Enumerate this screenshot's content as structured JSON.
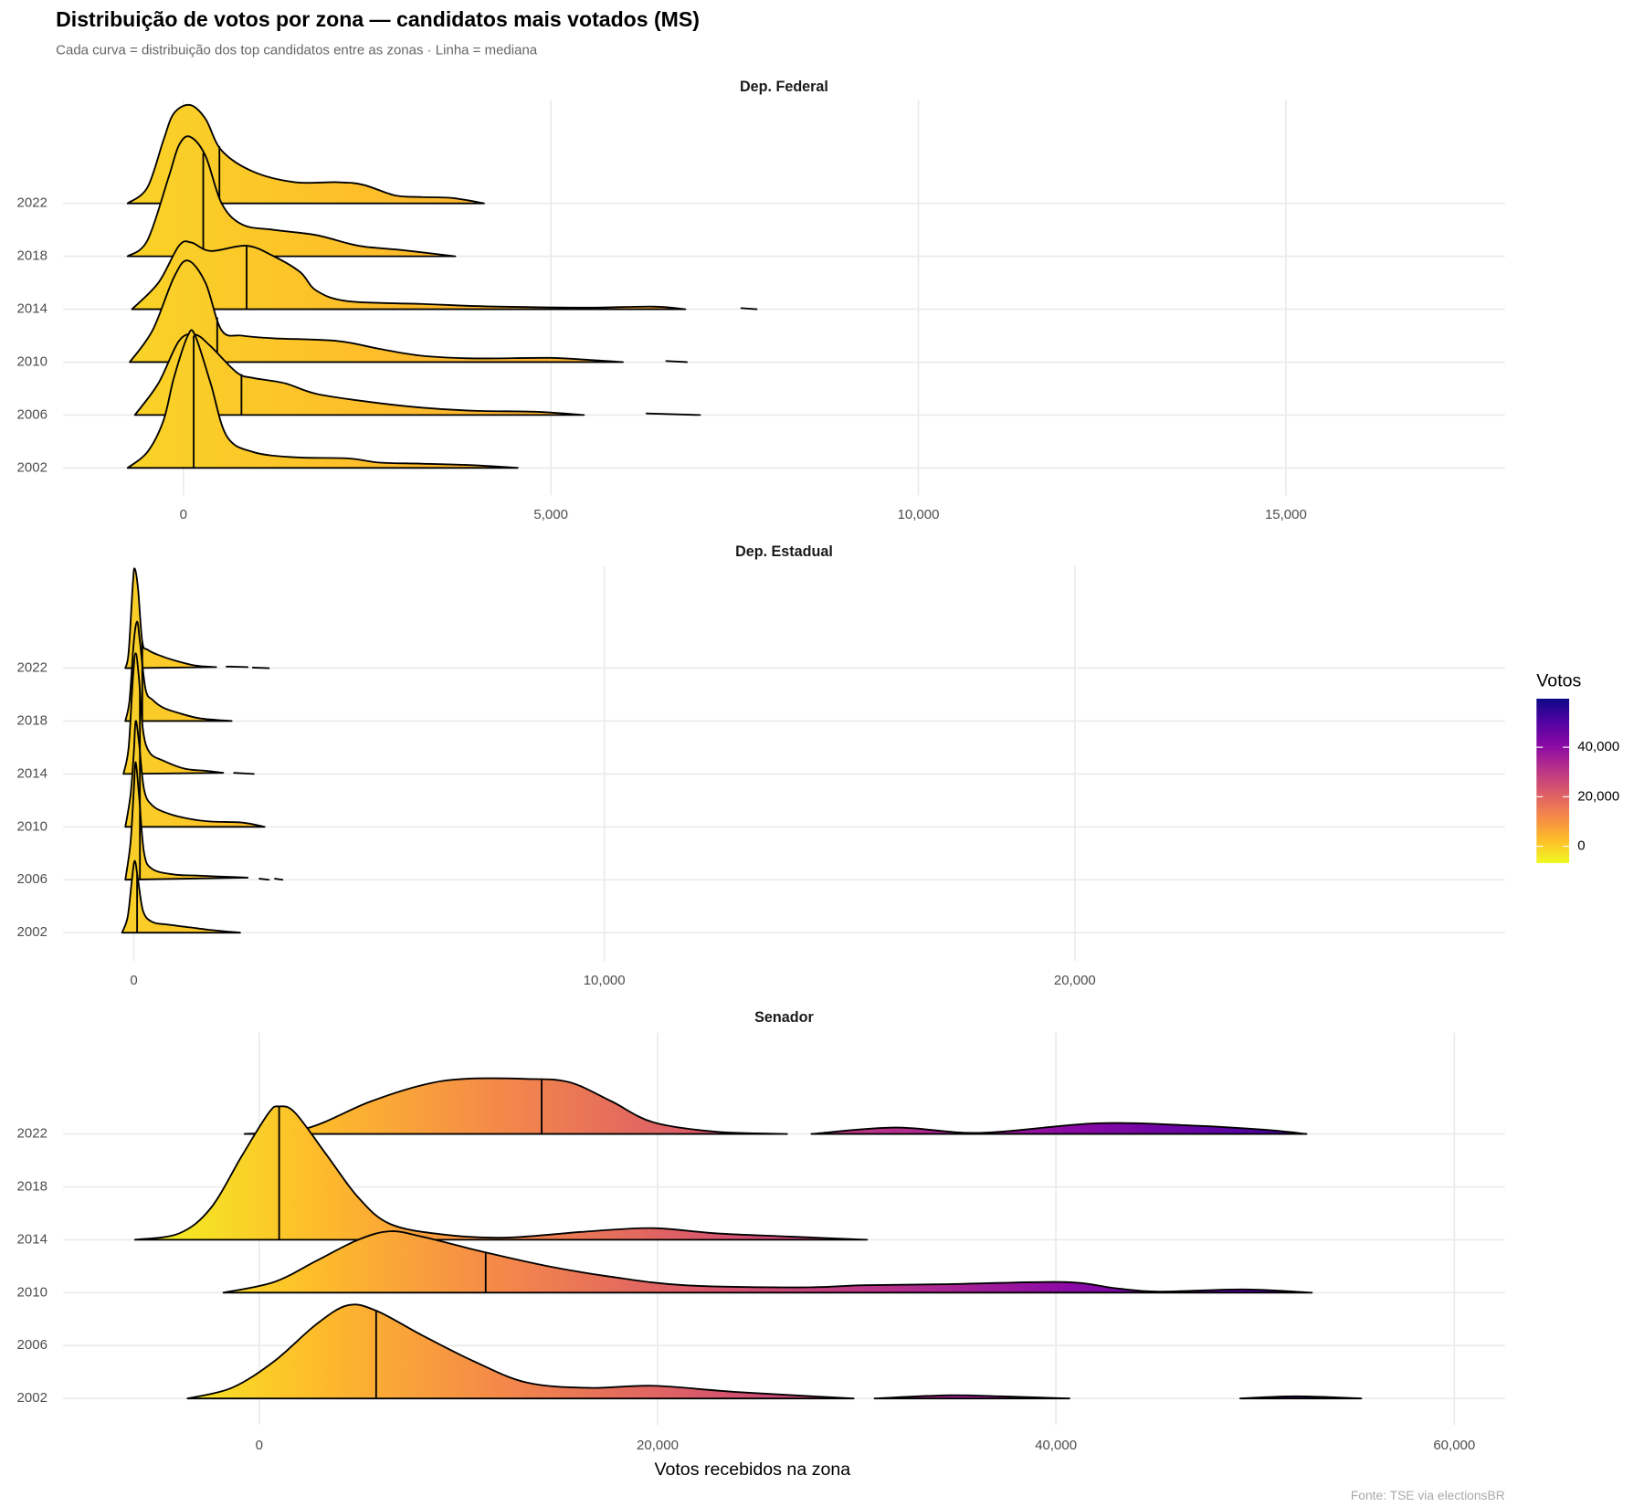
{
  "title": "Distribuição de votos por zona — candidatos mais votados (MS)",
  "subtitle": "Cada curva = distribuição dos top candidatos entre as zonas · Linha = mediana",
  "caption": "Fonte: TSE via electionsBR",
  "legend": {
    "title": "Votos",
    "ylim": [
      -6800,
      59600
    ],
    "ticks": [
      0,
      {
        "value": 20000,
        "label": "20,000"
      },
      {
        "value": 40000,
        "label": "40,000"
      }
    ],
    "colorscale": [
      "#f0f921",
      "#febd2a",
      "#f48849",
      "#db5c68",
      "#b83289",
      "#8b0aa5",
      "#5302a3",
      "#0d0887"
    ]
  },
  "chart_data": [
    {
      "type": "ridgeline",
      "title": "Dep. Federal",
      "grid": true,
      "line_color": "#000000",
      "categories": [
        "2022",
        "2018",
        "2014",
        "2010",
        "2006",
        "2002"
      ],
      "xlim": [
        -1635,
        17980
      ],
      "xticks": [
        0,
        {
          "value": 5000,
          "label": "5,000"
        },
        {
          "value": 10000,
          "label": "10,000"
        },
        {
          "value": 15000,
          "label": "15,000"
        }
      ],
      "series": [
        {
          "x": [
            -760,
            -490,
            -270,
            -130,
            90,
            300,
            520,
            950,
            1520,
            2100,
            2450,
            2880,
            3240,
            3670,
            4090
          ],
          "density": [
            0,
            0.3,
            1.2,
            1.7,
            1.86,
            1.6,
            1.0,
            0.6,
            0.4,
            0.4,
            0.35,
            0.15,
            0.12,
            0.1,
            0
          ],
          "median": 490
        },
        {
          "x": [
            -760,
            -490,
            -200,
            -60,
            90,
            300,
            520,
            800,
            1230,
            1810,
            2380,
            2960,
            3700
          ],
          "density": [
            0,
            0.3,
            1.5,
            2.1,
            2.26,
            1.9,
            1.0,
            0.6,
            0.5,
            0.4,
            0.2,
            0.12,
            0
          ],
          "median": 270
        },
        {
          "x": [
            -700,
            -340,
            -60,
            110,
            370,
            860,
            1230,
            1590,
            1810,
            2240,
            3240,
            3960,
            4680,
            5540,
            6400,
            6830,
            null,
            7590,
            7800
          ],
          "density": [
            0,
            0.5,
            1.2,
            1.26,
            1.1,
            1.2,
            1.0,
            0.7,
            0.35,
            0.15,
            0.1,
            0.06,
            0.04,
            0.03,
            0.05,
            0,
            null,
            0.02,
            0
          ],
          "median": 860
        },
        {
          "x": [
            -730,
            -420,
            -130,
            60,
            300,
            520,
            800,
            1230,
            2090,
            2670,
            3240,
            3960,
            4960,
            5540,
            5980,
            null,
            6570,
            6850
          ],
          "density": [
            0,
            0.6,
            1.6,
            1.92,
            1.5,
            0.6,
            0.5,
            0.45,
            0.4,
            0.25,
            0.12,
            0.07,
            0.08,
            0.04,
            0,
            null,
            0.02,
            0
          ],
          "median": 460
        },
        {
          "x": [
            -660,
            -340,
            -60,
            160,
            370,
            730,
            950,
            1380,
            1810,
            2520,
            3240,
            3960,
            4820,
            5450,
            null,
            6300,
            7030
          ],
          "density": [
            0,
            0.6,
            1.4,
            1.52,
            1.3,
            0.8,
            0.7,
            0.6,
            0.4,
            0.25,
            0.14,
            0.08,
            0.06,
            0,
            null,
            0.03,
            0
          ],
          "median": 790
        },
        {
          "x": [
            -760,
            -490,
            -270,
            -130,
            60,
            160,
            370,
            590,
            950,
            1520,
            2240,
            2670,
            3240,
            3960,
            4550
          ],
          "density": [
            0,
            0.3,
            0.9,
            1.7,
            2.5,
            2.5,
            1.6,
            0.6,
            0.3,
            0.2,
            0.18,
            0.1,
            0.08,
            0.05,
            0
          ],
          "median": 140
        }
      ]
    },
    {
      "type": "ridgeline",
      "title": "Dep. Estadual",
      "grid": true,
      "line_color": "#000000",
      "categories": [
        "2022",
        "2018",
        "2014",
        "2010",
        "2006",
        "2002"
      ],
      "xlim": [
        -1500,
        29140
      ],
      "xticks": [
        0,
        {
          "value": 10000,
          "label": "10,000"
        },
        {
          "value": 20000,
          "label": "20,000"
        }
      ],
      "series": [
        {
          "x": [
            -180,
            -110,
            -20,
            20,
            90,
            180,
            290,
            520,
            850,
            1300,
            1750,
            null,
            1970,
            2420,
            null,
            2530,
            2870
          ],
          "density": [
            0,
            0.3,
            1.6,
            1.88,
            1.5,
            0.5,
            0.35,
            0.25,
            0.15,
            0.05,
            0.02,
            null,
            0.03,
            0.02,
            null,
            0.01,
            0
          ],
          "median": 180
        },
        {
          "x": [
            -180,
            -90,
            0,
            70,
            130,
            250,
            400,
            630,
            960,
            1410,
            2080
          ],
          "density": [
            0,
            0.4,
            1.5,
            1.88,
            1.5,
            0.6,
            0.4,
            0.25,
            0.15,
            0.05,
            0
          ],
          "median": 180
        },
        {
          "x": [
            -220,
            -110,
            -20,
            40,
            110,
            200,
            340,
            630,
            1080,
            1520,
            1900,
            null,
            2130,
            2550
          ],
          "density": [
            0,
            0.5,
            1.8,
            2.28,
            1.8,
            0.8,
            0.4,
            0.25,
            0.1,
            0.06,
            0.02,
            null,
            0.02,
            0
          ],
          "median": 130
        },
        {
          "x": [
            -180,
            -70,
            0,
            40,
            110,
            220,
            400,
            740,
            1190,
            1640,
            2310,
            2780
          ],
          "density": [
            0,
            0.6,
            1.4,
            2.0,
            1.6,
            0.7,
            0.4,
            0.25,
            0.15,
            0.1,
            0.08,
            0
          ],
          "median": 130
        },
        {
          "x": [
            -180,
            -70,
            0,
            40,
            110,
            220,
            400,
            850,
            1300,
            1860,
            2420,
            null,
            2670,
            2870,
            null,
            3000,
            3160
          ],
          "density": [
            0,
            0.7,
            1.7,
            2.22,
            1.6,
            0.5,
            0.2,
            0.1,
            0.08,
            0.06,
            0.04,
            null,
            0.02,
            0,
            null,
            0.02,
            0
          ],
          "median": 130
        },
        {
          "x": [
            -250,
            -130,
            -40,
            20,
            90,
            200,
            400,
            740,
            1190,
            1640,
            2260
          ],
          "density": [
            0,
            0.3,
            1.0,
            1.36,
            1.0,
            0.4,
            0.2,
            0.15,
            0.1,
            0.05,
            0
          ],
          "median": 70
        }
      ]
    },
    {
      "type": "ridgeline",
      "title": "Senador",
      "grid": true,
      "line_color": "#000000",
      "xlabel": "Votos recebidos na zona",
      "categories": [
        "2022",
        "2018",
        "2014",
        "2010",
        "2006",
        "2002"
      ],
      "xlim": [
        -9840,
        62540
      ],
      "xticks": [
        0,
        {
          "value": 20000,
          "label": "20,000"
        },
        {
          "value": 40000,
          "label": "40,000"
        },
        {
          "value": 60000,
          "label": "60,000"
        }
      ],
      "series": [
        {
          "x": [
            -740,
            2330,
            5500,
            8150,
            10260,
            13440,
            15550,
            17670,
            19780,
            22960,
            26500,
            null,
            27720,
            31950,
            36180,
            42000,
            46760,
            50470,
            52580
          ],
          "density": [
            0,
            0.1,
            0.6,
            0.92,
            1.04,
            1.04,
            0.98,
            0.62,
            0.22,
            0.04,
            0,
            null,
            0,
            0.12,
            0.02,
            0.2,
            0.16,
            0.08,
            0
          ],
          "median": 14180
        },
        {
          "x": [],
          "density": [],
          "median": null
        },
        {
          "x": [
            -6240,
            -4020,
            -2430,
            -850,
            480,
            1000,
            1800,
            3390,
            4970,
            6560,
            9200,
            12380,
            16610,
            19780,
            22960,
            26660,
            30520
          ],
          "density": [
            0,
            0.12,
            0.6,
            1.6,
            2.4,
            2.52,
            2.4,
            1.6,
            0.8,
            0.3,
            0.1,
            0.04,
            0.16,
            0.22,
            0.12,
            0.06,
            0
          ],
          "median": 1000
        },
        {
          "x": [
            -1800,
            740,
            2860,
            4970,
            6560,
            8150,
            11370,
            14500,
            17670,
            21370,
            27190,
            30360,
            34600,
            40420,
            43060,
            45180,
            49410,
            52850
          ],
          "density": [
            0,
            0.2,
            0.6,
            1.0,
            1.16,
            1.06,
            0.76,
            0.5,
            0.3,
            0.14,
            0.1,
            0.14,
            0.16,
            0.2,
            0.08,
            0.02,
            0.06,
            0
          ],
          "median": 11370
        },
        {
          "x": [],
          "density": [],
          "median": null
        },
        {
          "x": [
            -3600,
            -1380,
            740,
            2860,
            4440,
            5870,
            8150,
            10790,
            13440,
            16610,
            19780,
            24020,
            29840,
            null,
            30890,
            34600,
            37240,
            40680,
            null,
            49250,
            52050,
            55330
          ],
          "density": [
            0,
            0.2,
            0.7,
            1.4,
            1.76,
            1.66,
            1.2,
            0.7,
            0.3,
            0.2,
            0.24,
            0.12,
            0,
            null,
            0,
            0.06,
            0.04,
            0,
            null,
            0,
            0.04,
            0
          ],
          "median": 5870
        }
      ]
    }
  ]
}
